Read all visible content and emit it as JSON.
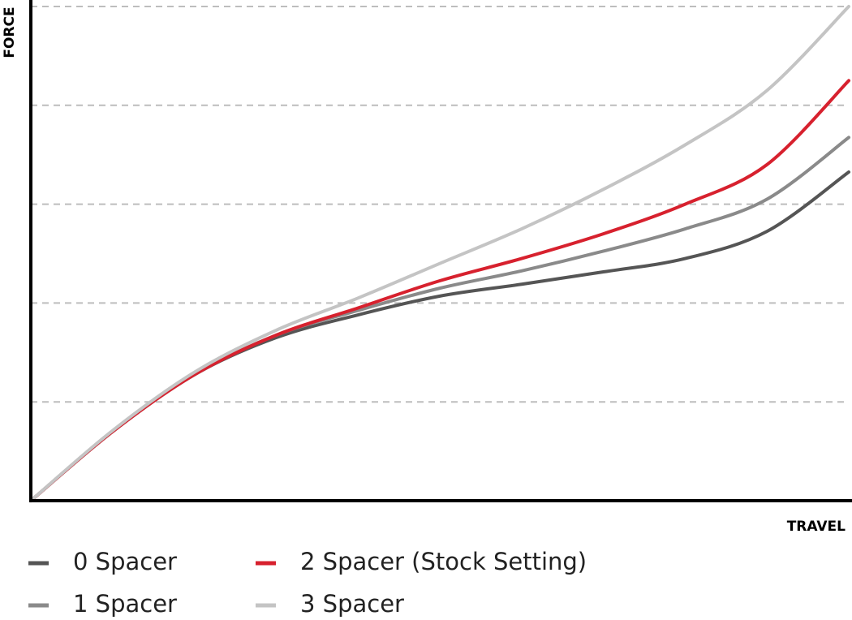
{
  "chart_data": {
    "type": "line",
    "y_label": "FORCE",
    "x_label": "TRAVEL",
    "x": [
      0,
      10,
      20,
      30,
      40,
      50,
      60,
      70,
      80,
      90,
      100
    ],
    "xlim": [
      0,
      100
    ],
    "ylim": [
      0,
      100
    ],
    "yticks": [
      20,
      40,
      60,
      80,
      100
    ],
    "grid": true,
    "legend": "bottom",
    "series": [
      {
        "name": "0 Spacer",
        "color": "#555555",
        "values": [
          0,
          14,
          25.5,
          33,
          37.6,
          41.4,
          43.8,
          46.3,
          49,
          54.5,
          66.5
        ]
      },
      {
        "name": "1 Spacer",
        "color": "#8a8a8a",
        "values": [
          0,
          14,
          25.5,
          33.5,
          38.5,
          43,
          46.5,
          50.5,
          55,
          61,
          73.5
        ]
      },
      {
        "name": "2 Spacer (Stock Setting)",
        "color": "#d7212e",
        "values": [
          0,
          14,
          25.5,
          33.5,
          39,
          44.5,
          49,
          54,
          60,
          68,
          85
        ]
      },
      {
        "name": "3 Spacer",
        "color": "#c4c4c4",
        "values": [
          0,
          14.2,
          26,
          34.5,
          41,
          48,
          55,
          63,
          72,
          83,
          100
        ]
      }
    ]
  }
}
